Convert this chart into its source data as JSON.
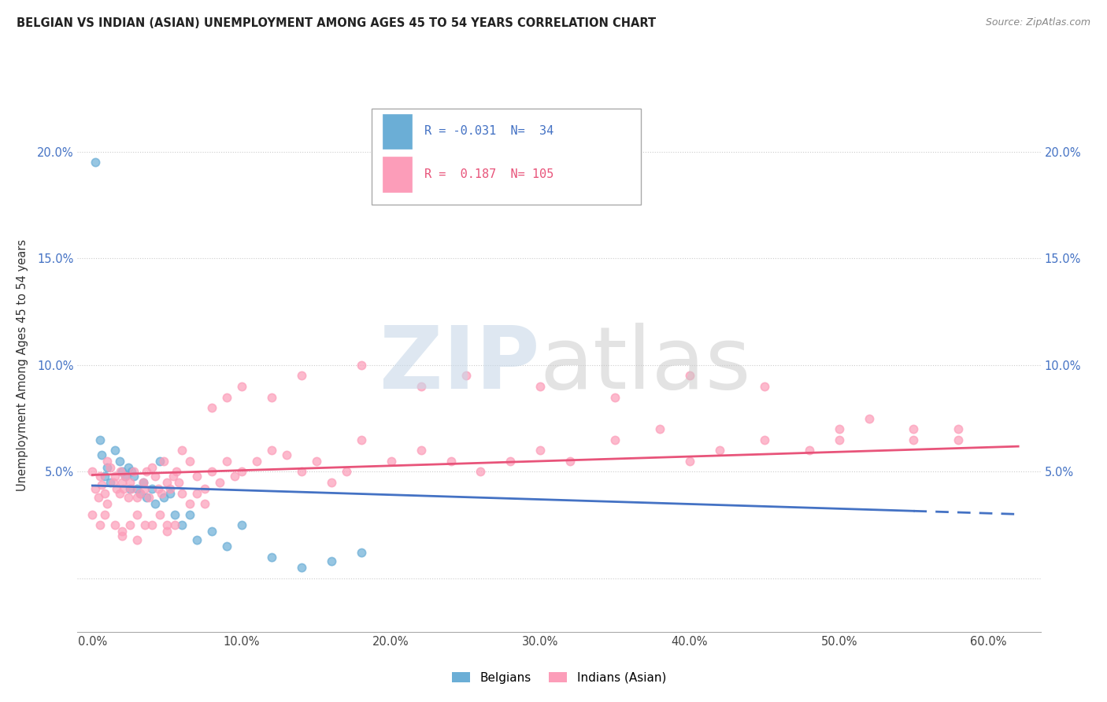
{
  "title": "BELGIAN VS INDIAN (ASIAN) UNEMPLOYMENT AMONG AGES 45 TO 54 YEARS CORRELATION CHART",
  "source": "Source: ZipAtlas.com",
  "ylabel": "Unemployment Among Ages 45 to 54 years",
  "x_ticks": [
    0.0,
    0.1,
    0.2,
    0.3,
    0.4,
    0.5,
    0.6
  ],
  "x_tick_labels": [
    "0.0%",
    "10.0%",
    "20.0%",
    "30.0%",
    "40.0%",
    "50.0%",
    "60.0%"
  ],
  "y_ticks": [
    0.0,
    0.05,
    0.1,
    0.15,
    0.2
  ],
  "y_tick_labels": [
    "",
    "5.0%",
    "10.0%",
    "15.0%",
    "20.0%"
  ],
  "xlim": [
    -0.01,
    0.635
  ],
  "ylim": [
    -0.025,
    0.225
  ],
  "belgian_color": "#6baed6",
  "indian_color": "#fc9db9",
  "belgian_line_color": "#4472c4",
  "indian_line_color": "#e8547a",
  "belgian_R": -0.031,
  "belgian_N": 34,
  "indian_R": 0.187,
  "indian_N": 105,
  "belgian_scatter_x": [
    0.002,
    0.005,
    0.006,
    0.008,
    0.01,
    0.012,
    0.015,
    0.018,
    0.02,
    0.022,
    0.024,
    0.025,
    0.026,
    0.028,
    0.03,
    0.032,
    0.034,
    0.036,
    0.04,
    0.042,
    0.045,
    0.048,
    0.052,
    0.055,
    0.06,
    0.065,
    0.07,
    0.08,
    0.09,
    0.1,
    0.12,
    0.14,
    0.16,
    0.18
  ],
  "belgian_scatter_y": [
    0.195,
    0.065,
    0.058,
    0.048,
    0.052,
    0.045,
    0.06,
    0.055,
    0.05,
    0.048,
    0.052,
    0.042,
    0.05,
    0.048,
    0.042,
    0.04,
    0.045,
    0.038,
    0.042,
    0.035,
    0.055,
    0.038,
    0.04,
    0.03,
    0.025,
    0.03,
    0.018,
    0.022,
    0.015,
    0.025,
    0.01,
    0.005,
    0.008,
    0.012
  ],
  "indian_scatter_x": [
    0.0,
    0.002,
    0.004,
    0.005,
    0.006,
    0.008,
    0.01,
    0.012,
    0.014,
    0.015,
    0.016,
    0.018,
    0.019,
    0.02,
    0.021,
    0.022,
    0.024,
    0.025,
    0.026,
    0.028,
    0.03,
    0.032,
    0.034,
    0.035,
    0.036,
    0.038,
    0.04,
    0.042,
    0.044,
    0.046,
    0.048,
    0.05,
    0.052,
    0.054,
    0.056,
    0.058,
    0.06,
    0.065,
    0.07,
    0.075,
    0.08,
    0.085,
    0.09,
    0.095,
    0.1,
    0.11,
    0.12,
    0.13,
    0.14,
    0.15,
    0.16,
    0.17,
    0.18,
    0.2,
    0.22,
    0.24,
    0.26,
    0.28,
    0.3,
    0.32,
    0.35,
    0.38,
    0.4,
    0.42,
    0.45,
    0.48,
    0.5,
    0.52,
    0.55,
    0.58,
    0.0,
    0.005,
    0.008,
    0.01,
    0.015,
    0.02,
    0.025,
    0.03,
    0.035,
    0.04,
    0.045,
    0.05,
    0.055,
    0.06,
    0.065,
    0.07,
    0.075,
    0.08,
    0.09,
    0.1,
    0.12,
    0.14,
    0.18,
    0.22,
    0.25,
    0.3,
    0.35,
    0.4,
    0.45,
    0.5,
    0.55,
    0.58,
    0.02,
    0.03,
    0.05
  ],
  "indian_scatter_y": [
    0.05,
    0.042,
    0.038,
    0.048,
    0.044,
    0.04,
    0.055,
    0.052,
    0.045,
    0.048,
    0.042,
    0.04,
    0.05,
    0.045,
    0.042,
    0.048,
    0.038,
    0.045,
    0.042,
    0.05,
    0.038,
    0.04,
    0.045,
    0.042,
    0.05,
    0.038,
    0.052,
    0.048,
    0.042,
    0.04,
    0.055,
    0.045,
    0.042,
    0.048,
    0.05,
    0.045,
    0.06,
    0.055,
    0.048,
    0.042,
    0.05,
    0.045,
    0.055,
    0.048,
    0.05,
    0.055,
    0.06,
    0.058,
    0.05,
    0.055,
    0.045,
    0.05,
    0.065,
    0.055,
    0.06,
    0.055,
    0.05,
    0.055,
    0.06,
    0.055,
    0.065,
    0.07,
    0.055,
    0.06,
    0.065,
    0.06,
    0.07,
    0.075,
    0.065,
    0.07,
    0.03,
    0.025,
    0.03,
    0.035,
    0.025,
    0.022,
    0.025,
    0.03,
    0.025,
    0.025,
    0.03,
    0.022,
    0.025,
    0.04,
    0.035,
    0.04,
    0.035,
    0.08,
    0.085,
    0.09,
    0.085,
    0.095,
    0.1,
    0.09,
    0.095,
    0.09,
    0.085,
    0.095,
    0.09,
    0.065,
    0.07,
    0.065,
    0.02,
    0.018,
    0.025
  ]
}
